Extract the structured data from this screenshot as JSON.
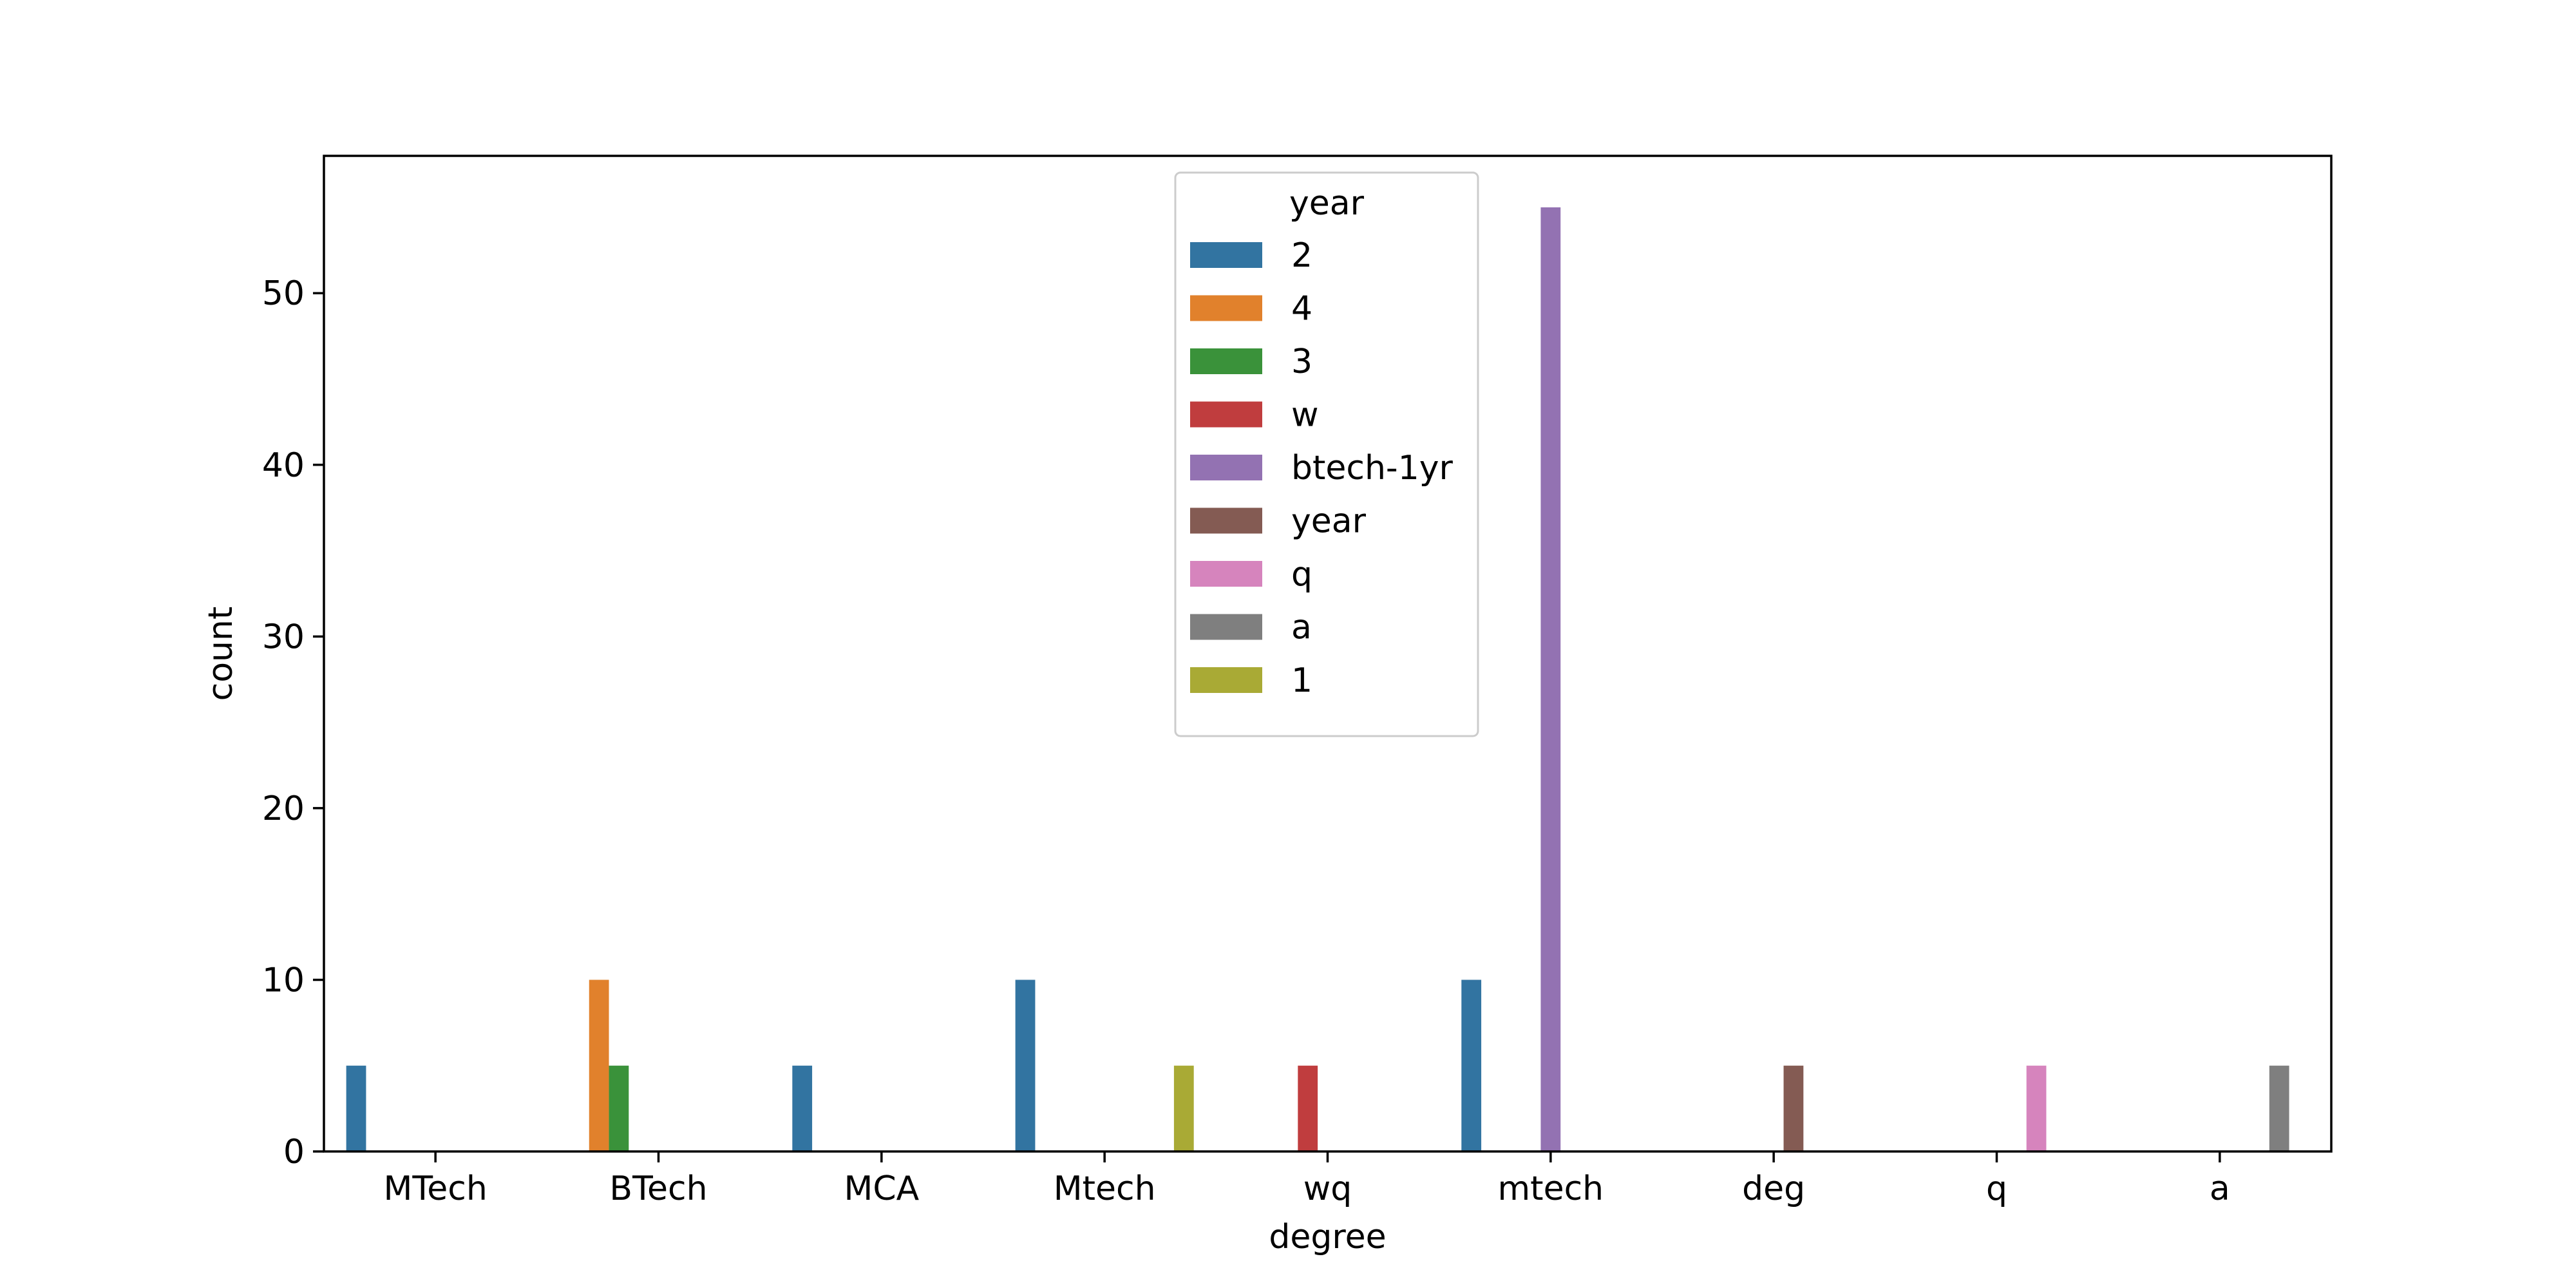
{
  "chart_data": {
    "type": "bar",
    "xlabel": "degree",
    "ylabel": "count",
    "ylim": [
      0,
      58
    ],
    "yticks": [
      0,
      10,
      20,
      30,
      40,
      50
    ],
    "categories": [
      "MTech",
      "BTech",
      "MCA",
      "Mtech",
      "wq",
      "mtech",
      "deg",
      "q",
      "a"
    ],
    "legend": {
      "title": "year",
      "placement": "upper-center"
    },
    "grid": false,
    "series": [
      {
        "name": "2",
        "color": "#3274a1",
        "values": [
          5,
          0,
          5,
          10,
          0,
          10,
          0,
          0,
          0
        ]
      },
      {
        "name": "4",
        "color": "#e1812c",
        "values": [
          0,
          10,
          0,
          0,
          0,
          0,
          0,
          0,
          0
        ]
      },
      {
        "name": "3",
        "color": "#3a923a",
        "values": [
          0,
          5,
          0,
          0,
          0,
          0,
          0,
          0,
          0
        ]
      },
      {
        "name": "w",
        "color": "#c03d3e",
        "values": [
          0,
          0,
          0,
          0,
          5,
          0,
          0,
          0,
          0
        ]
      },
      {
        "name": "btech-1yr",
        "color": "#9372b2",
        "values": [
          0,
          0,
          0,
          0,
          0,
          55,
          0,
          0,
          0
        ]
      },
      {
        "name": "year",
        "color": "#845b53",
        "values": [
          0,
          0,
          0,
          0,
          0,
          0,
          5,
          0,
          0
        ]
      },
      {
        "name": "q",
        "color": "#d684bd",
        "values": [
          0,
          0,
          0,
          0,
          0,
          0,
          0,
          5,
          0
        ]
      },
      {
        "name": "a",
        "color": "#7f7f7f",
        "values": [
          0,
          0,
          0,
          0,
          0,
          0,
          0,
          0,
          5
        ]
      },
      {
        "name": "1",
        "color": "#a9aa35",
        "values": [
          0,
          0,
          0,
          5,
          0,
          0,
          0,
          0,
          0
        ]
      }
    ]
  }
}
